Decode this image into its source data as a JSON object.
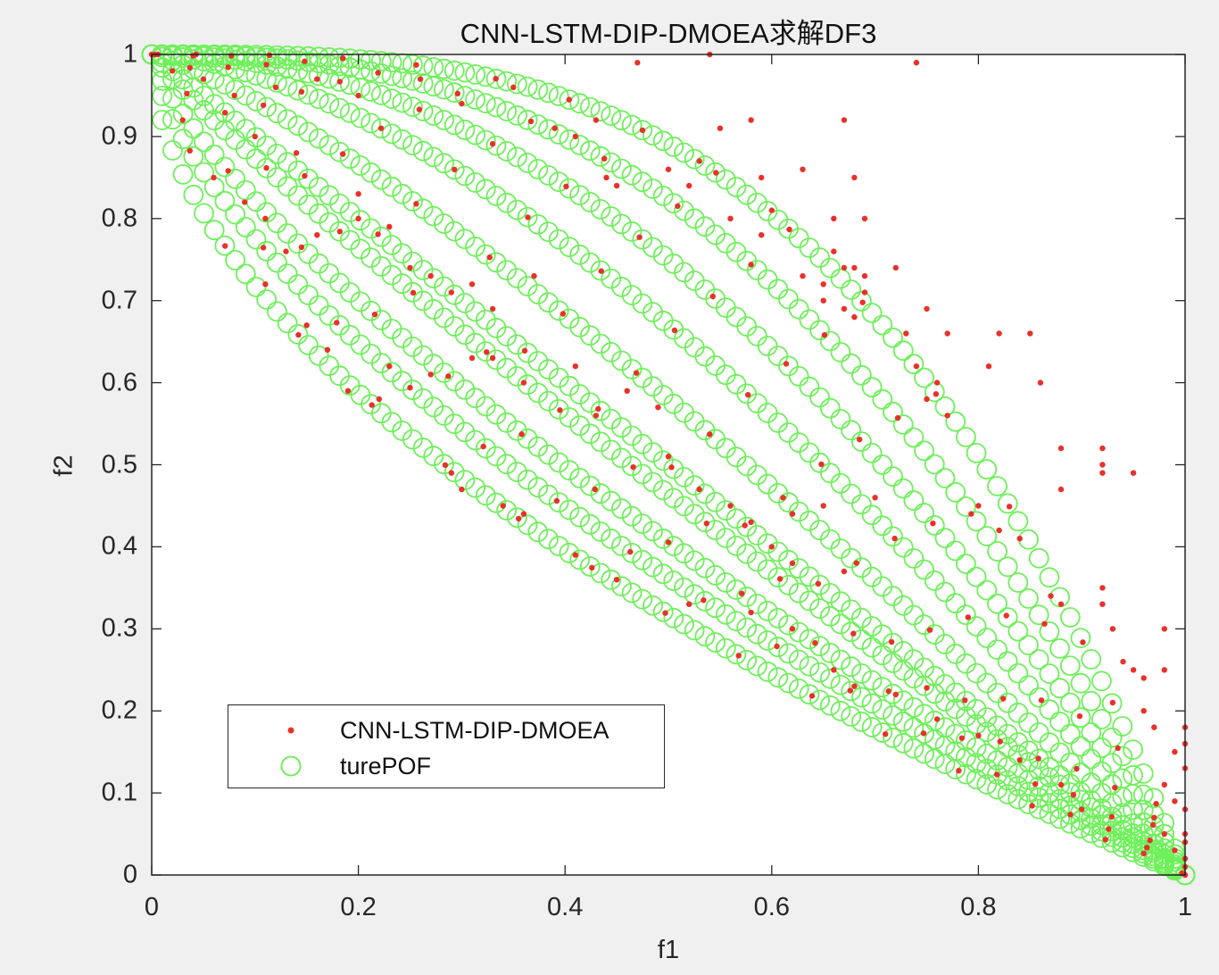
{
  "chart_data": {
    "type": "scatter",
    "title": "CNN-LSTM-DIP-DMOEA求解DF3",
    "xlabel": "f1",
    "ylabel": "f2",
    "xlim": [
      0,
      1
    ],
    "ylim": [
      0,
      1
    ],
    "xticks": [
      "0",
      "0.2",
      "0.4",
      "0.6",
      "0.8",
      "1"
    ],
    "yticks": [
      "0",
      "0.1",
      "0.2",
      "0.3",
      "0.4",
      "0.5",
      "0.6",
      "0.7",
      "0.8",
      "0.9",
      "1"
    ],
    "grid": false,
    "legend_position": "lower-left (inside)",
    "legend": [
      {
        "label": "CNN-LSTM-DIP-DMOEA",
        "marker": "filled-dot",
        "color": "#e8312a"
      },
      {
        "label": "turePOF",
        "marker": "open-circle",
        "color": "#6ef05a"
      }
    ],
    "series": [
      {
        "name": "turePOF",
        "marker": "open-circle",
        "color": "#6ef05a",
        "description": "Family of true Pareto fronts f2 = 1 - f1^H for changing H over time",
        "H_values": [
          0.55,
          0.65,
          0.75,
          0.9,
          1.0,
          1.25,
          1.6,
          2.0,
          2.5,
          3.2
        ],
        "points_per_curve": 100
      },
      {
        "name": "CNN-LSTM-DIP-DMOEA",
        "marker": "filled-dot",
        "color": "#e8312a",
        "points": [
          [
            0.47,
            0.99
          ],
          [
            0.54,
            1.0
          ],
          [
            0.74,
            0.99
          ],
          [
            0.67,
            0.92
          ],
          [
            0.58,
            0.92
          ],
          [
            0.55,
            0.91
          ],
          [
            0.53,
            0.87
          ],
          [
            0.63,
            0.86
          ],
          [
            0.59,
            0.85
          ],
          [
            0.68,
            0.85
          ],
          [
            0.6,
            0.81
          ],
          [
            0.66,
            0.8
          ],
          [
            0.69,
            0.8
          ],
          [
            0.66,
            0.76
          ],
          [
            0.67,
            0.74
          ],
          [
            0.68,
            0.74
          ],
          [
            0.65,
            0.72
          ],
          [
            0.69,
            0.73
          ],
          [
            0.72,
            0.74
          ],
          [
            0.69,
            0.71
          ],
          [
            0.65,
            0.7
          ],
          [
            0.67,
            0.69
          ],
          [
            0.68,
            0.68
          ],
          [
            0.75,
            0.69
          ],
          [
            0.73,
            0.66
          ],
          [
            0.77,
            0.66
          ],
          [
            0.82,
            0.66
          ],
          [
            0.85,
            0.66
          ],
          [
            0.74,
            0.62
          ],
          [
            0.76,
            0.6
          ],
          [
            0.81,
            0.62
          ],
          [
            0.86,
            0.6
          ],
          [
            0.75,
            0.58
          ],
          [
            0.77,
            0.56
          ],
          [
            0.88,
            0.52
          ],
          [
            0.92,
            0.52
          ],
          [
            0.92,
            0.5
          ],
          [
            0.95,
            0.49
          ],
          [
            0.92,
            0.49
          ],
          [
            0.88,
            0.47
          ],
          [
            0.8,
            0.45
          ],
          [
            0.82,
            0.42
          ],
          [
            0.84,
            0.41
          ],
          [
            0.87,
            0.34
          ],
          [
            0.88,
            0.33
          ],
          [
            0.92,
            0.35
          ],
          [
            0.92,
            0.33
          ],
          [
            0.93,
            0.3
          ],
          [
            0.98,
            0.3
          ],
          [
            0.94,
            0.26
          ],
          [
            0.95,
            0.25
          ],
          [
            0.96,
            0.24
          ],
          [
            0.98,
            0.25
          ],
          [
            0.93,
            0.21
          ],
          [
            0.96,
            0.2
          ],
          [
            0.97,
            0.18
          ],
          [
            1.0,
            0.18
          ],
          [
            1.0,
            0.16
          ],
          [
            0.99,
            0.15
          ],
          [
            1.0,
            0.13
          ],
          [
            0.98,
            0.11
          ],
          [
            0.99,
            0.09
          ],
          [
            1.0,
            0.08
          ],
          [
            0.97,
            0.07
          ],
          [
            0.98,
            0.05
          ],
          [
            1.0,
            0.05
          ],
          [
            1.0,
            0.04
          ],
          [
            0.99,
            0.03
          ],
          [
            1.0,
            0.02
          ],
          [
            1.0,
            0.01
          ],
          [
            0.06,
            0.85
          ],
          [
            0.09,
            0.82
          ],
          [
            0.11,
            0.8
          ],
          [
            0.16,
            0.78
          ],
          [
            0.13,
            0.76
          ],
          [
            0.11,
            0.72
          ],
          [
            0.2,
            0.83
          ],
          [
            0.2,
            0.8
          ],
          [
            0.23,
            0.79
          ],
          [
            0.25,
            0.74
          ],
          [
            0.27,
            0.73
          ],
          [
            0.31,
            0.72
          ],
          [
            0.33,
            0.69
          ],
          [
            0.37,
            0.73
          ],
          [
            0.23,
            0.62
          ],
          [
            0.27,
            0.61
          ],
          [
            0.31,
            0.63
          ],
          [
            0.33,
            0.63
          ],
          [
            0.36,
            0.6
          ],
          [
            0.41,
            0.62
          ],
          [
            0.46,
            0.59
          ],
          [
            0.49,
            0.57
          ],
          [
            0.43,
            0.56
          ],
          [
            0.5,
            0.51
          ],
          [
            0.53,
            0.47
          ],
          [
            0.56,
            0.45
          ],
          [
            0.58,
            0.43
          ],
          [
            0.6,
            0.4
          ],
          [
            0.62,
            0.38
          ],
          [
            0.67,
            0.37
          ],
          [
            0.62,
            0.44
          ],
          [
            0.65,
            0.45
          ],
          [
            0.7,
            0.46
          ],
          [
            0.41,
            0.39
          ],
          [
            0.45,
            0.36
          ],
          [
            0.52,
            0.33
          ],
          [
            0.58,
            0.32
          ],
          [
            0.62,
            0.3
          ],
          [
            0.66,
            0.25
          ],
          [
            0.68,
            0.23
          ],
          [
            0.72,
            0.22
          ],
          [
            0.76,
            0.19
          ],
          [
            0.8,
            0.17
          ],
          [
            0.84,
            0.14
          ],
          [
            0.88,
            0.11
          ],
          [
            0.9,
            0.08
          ],
          [
            0.29,
            0.49
          ],
          [
            0.3,
            0.47
          ],
          [
            0.34,
            0.45
          ],
          [
            0.36,
            0.44
          ],
          [
            0.22,
            0.58
          ],
          [
            0.19,
            0.59
          ],
          [
            0.15,
            0.67
          ],
          [
            0.17,
            0.64
          ],
          [
            0.44,
            0.85
          ],
          [
            0.43,
            0.92
          ],
          [
            0.41,
            0.9
          ],
          [
            0.39,
            0.91
          ],
          [
            0.45,
            0.84
          ],
          [
            0.5,
            0.86
          ],
          [
            0.52,
            0.84
          ],
          [
            0.56,
            0.8
          ],
          [
            0.59,
            0.78
          ],
          [
            0.63,
            0.73
          ],
          [
            0.12,
            0.96
          ],
          [
            0.16,
            0.97
          ],
          [
            0.2,
            0.95
          ],
          [
            0.26,
            0.97
          ],
          [
            0.3,
            0.94
          ],
          [
            0.35,
            0.96
          ],
          [
            0.02,
            0.98
          ],
          [
            0.05,
            0.97
          ],
          [
            0.08,
            0.95
          ],
          [
            0.03,
            0.92
          ],
          [
            0.1,
            0.9
          ],
          [
            0.14,
            0.88
          ]
        ]
      }
    ]
  },
  "legend": {
    "items": [
      {
        "label": "CNN-LSTM-DIP-DMOEA"
      },
      {
        "label": "turePOF"
      }
    ]
  }
}
